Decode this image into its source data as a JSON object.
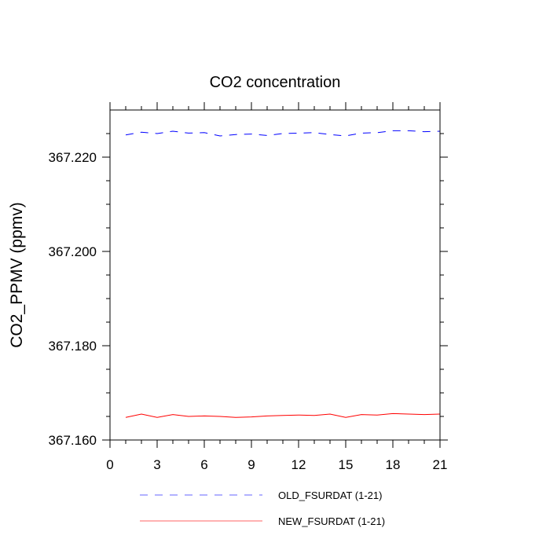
{
  "chart_data": {
    "type": "line",
    "title": "CO2 concentration",
    "xlabel": "",
    "ylabel": "CO2_PPMV  (ppmv)",
    "xlim": [
      0,
      21
    ],
    "ylim": [
      367.16,
      367.23
    ],
    "x_ticks": [
      0,
      3,
      6,
      9,
      12,
      15,
      18,
      21
    ],
    "x_tick_labels": [
      "0",
      "3",
      "6",
      "9",
      "12",
      "15",
      "18",
      "21"
    ],
    "x_minor_ticks": [
      1,
      2,
      4,
      5,
      7,
      8,
      10,
      11,
      13,
      14,
      16,
      17,
      19,
      20
    ],
    "y_ticks": [
      367.16,
      367.18,
      367.2,
      367.22
    ],
    "y_tick_labels": [
      "367.160",
      "367.180",
      "367.200",
      "367.220"
    ],
    "y_minor_ticks": [
      367.165,
      367.17,
      367.175,
      367.185,
      367.19,
      367.195,
      367.205,
      367.21,
      367.215,
      367.225
    ],
    "grid": false,
    "legend_position": "bottom",
    "x": [
      1,
      2,
      3,
      4,
      5,
      6,
      7,
      8,
      9,
      10,
      11,
      12,
      13,
      14,
      15,
      16,
      17,
      18,
      19,
      20,
      21
    ],
    "series": [
      {
        "name": "OLD_FSURDAT (1-21)",
        "color": "#0000ff",
        "dash": "dashed",
        "values": [
          367.2247,
          367.2253,
          367.225,
          367.2255,
          367.2251,
          367.2252,
          367.2245,
          367.2248,
          367.2249,
          367.2246,
          367.225,
          367.2251,
          367.2252,
          367.2248,
          367.2245,
          367.2251,
          367.2252,
          367.2256,
          367.2256,
          367.2254,
          367.2255
        ]
      },
      {
        "name": "NEW_FSURDAT (1-21)",
        "color": "#ff0000",
        "dash": "solid",
        "values": [
          367.1648,
          367.1655,
          367.1648,
          367.1654,
          367.165,
          367.1651,
          367.165,
          367.1648,
          367.1649,
          367.1651,
          367.1652,
          367.1653,
          367.1652,
          367.1655,
          367.1648,
          367.1654,
          367.1653,
          367.1656,
          367.1655,
          367.1654,
          367.1655
        ]
      }
    ]
  }
}
